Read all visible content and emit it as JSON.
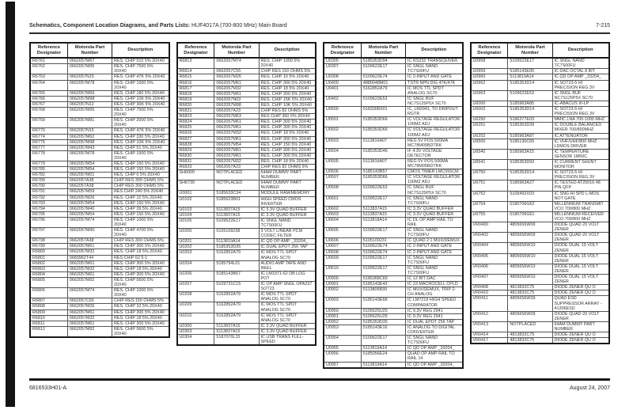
{
  "header": {
    "title_bold": "Schematics, Component Location Diagrams, and Parts Lists:",
    "title_normal": "HUF4017A (700-800 MHz) Main Board",
    "page_number": "7-215"
  },
  "table_headers": [
    "Reference Designator",
    "Motorola Part Number",
    "Description"
  ],
  "tables": [
    {
      "rows": [
        [
          "R6761",
          "0662057M67",
          "RES. CHIP 510 5% 20X40"
        ],
        [
          "R6762",
          "0662057M95",
          "RES. CHIP 7500 5% 20X40"
        ],
        [
          "R6763",
          "0662057N15",
          "RES. CHIP 47K 5% 20X40"
        ],
        [
          "R6764",
          "0662057M78",
          "RES. CHIP 1500 5% 20X40"
        ],
        [
          "R6765",
          "0662057M56",
          "RES. CHIP 180 5% 20X40"
        ],
        [
          "R6766",
          "0662057M98",
          "RES. CHIP 10K 5% 20X40"
        ],
        [
          "R6767",
          "0662057N12",
          "RES. CHIP 36K 5% 20X40"
        ],
        [
          "R6768",
          "0662057M95",
          "RES. CHIP 7500 5% 20X40"
        ],
        [
          "R6769",
          "0662057M81",
          "RES. CHIP 2000 5% 20X40"
        ],
        [
          "R6770",
          "0662057N15",
          "RES. CHIP 47K 5% 20X40"
        ],
        [
          "R6774",
          "0662057M62",
          "RES. CHIP 330 5% 20X40"
        ],
        [
          "R6775",
          "0662057M98",
          "RES. CHIP 10K 5% 20X40"
        ],
        [
          "R6777",
          "0662057M43",
          "RES. CHIP 51 5% 20X40"
        ],
        [
          "R6778",
          "0662057M78",
          "RES. CHIP 1500 5% 20X40"
        ],
        [
          "R6779",
          "0662057M54",
          "RES. CHIP 150 5% 20X40"
        ],
        [
          "R6780",
          "0662057M54",
          "RES. CHIP 150 5% 20X40"
        ],
        [
          "R6782",
          "0662057M01",
          "RES. CHIP 0 5% 20X40"
        ],
        [
          "R6789",
          "0662057A38",
          "CHIP RES 300 OHMS 5%"
        ],
        [
          "R6790",
          "0662057A38",
          "CHIP RES 300 OHMS 5%"
        ],
        [
          "R6791",
          "0662057M59",
          "RES CHIP 240 5% 20X40"
        ],
        [
          "R6792",
          "0662057M26",
          "RES. CHIP 10 5% 20X40"
        ],
        [
          "R6793",
          "0662057M54",
          "RES. CHIP 150 5% 20X40"
        ],
        [
          "R6794",
          "0662057M40",
          "RES. CHIP 39 5% 20X40"
        ],
        [
          "R6795",
          "0662057M54",
          "RES. CHIP 150 5% 20X40"
        ],
        [
          "R6796",
          "0662057M74",
          "RES. CHIP 1000 5% 20X40"
        ],
        [
          "R6797",
          "0662057M90",
          "RES. CHIP 4700 5% 20X40"
        ],
        [
          "R6798",
          "0662057A38",
          "CHIP RES 300 OHMS 5%"
        ],
        [
          "R6799",
          "0662057M61",
          "RES. CHIP 300 5% 20X40"
        ],
        [
          "R6800",
          "0662057M32",
          "RES. CHIP 18 5% 20X40"
        ],
        [
          "R6801",
          "0683962T44",
          "RES CHIP 62 5-1"
        ],
        [
          "R6802",
          "0662057M61",
          "RES. CHIP 300 5% 20X40"
        ],
        [
          "R6803",
          "0662057M32",
          "RES. CHIP 18 5% 20X40"
        ],
        [
          "R6804",
          "0662057M61",
          "RES. CHIP 300 5% 20X40"
        ],
        [
          "R6805",
          "0662057M92",
          "RES. CHIP 5600 5% 20X40"
        ],
        [
          "R6806",
          "0662057M74",
          "RES. CHIP 1000 5% 20X40"
        ],
        [
          "R6807",
          "0662057C65",
          "CHIP RES 150 OHMS 5%"
        ],
        [
          "R6808",
          "0662057M26",
          "RES. CHIP 10 5% 20X40"
        ],
        [
          "R6809",
          "0662057M61",
          "RES. CHIP 300 5% 20X40"
        ],
        [
          "R6810",
          "0662057M32",
          "RES. CHIP 18 5% 20X40"
        ],
        [
          "R6811",
          "0662057M61",
          "RES. CHIP 300 5% 20X40"
        ],
        [
          "R6812",
          "0662057M92",
          "RES. CHIP 5600 5% 20X40"
        ]
      ]
    },
    {
      "rows": [
        [
          "R6813",
          "0662057M74",
          "RES. CHIP 1000 5% 20X40"
        ],
        [
          "R6814",
          "0662057C55",
          "CHIP RES 150 OHMS 5%"
        ],
        [
          "R6815",
          "0662057M26",
          "RES. CHIP 10 5% 20X40"
        ],
        [
          "R6816",
          "0662057M61",
          "RES. CHIP 300 5% 20X40"
        ],
        [
          "R6817",
          "0662057M32",
          "RES. CHIP 18 5% 20X40"
        ],
        [
          "R6818",
          "0662057M61",
          "RES. CHIP 300 5% 20X40"
        ],
        [
          "R6819",
          "0662057N03",
          "RES. CHIP 15K 5% 20X40"
        ],
        [
          "R6820",
          "0662057M98",
          "RES. CHIP 10K 5% 20X40"
        ],
        [
          "R6821",
          "0662057A23",
          "CHIP RES 82 OHMS 5%"
        ],
        [
          "R6823",
          "0662057M63",
          "RES CHIP 360 5% 20X40"
        ],
        [
          "R6824",
          "0662057M61",
          "RES. CHIP 300 5% 20X40"
        ],
        [
          "R6825",
          "0662057M61",
          "RES. CHIP 300 5% 20X40"
        ],
        [
          "R6826",
          "0662057M32",
          "RES. CHIP 18 5% 20X40"
        ],
        [
          "R6827",
          "0662057M61",
          "RES. CHIP 300 5% 20X40"
        ],
        [
          "R6828",
          "0662057M54",
          "RES. CHIP 150 5% 20X40"
        ],
        [
          "R6829",
          "0662057M61",
          "RES. CHIP 300 5% 20X40"
        ],
        [
          "R6830",
          "0662057M61",
          "RES. CHIP 300 5% 20X40"
        ],
        [
          "R6831",
          "0662057M32",
          "RES. CHIP 18 5% 20X40"
        ],
        [
          "R6833",
          "0662057A23",
          "CHIP RES 82 OHMS 5%"
        ],
        [
          "SH6000",
          "NOTPLACED",
          "64AM DUMMY PART NUMBER"
        ],
        [
          "SH6730",
          "NOTPLACED",
          "64AM DUMMY PART NUMBER"
        ],
        [
          "U0001",
          "5185633C34",
          "MODULE RAM/MEMORY"
        ],
        [
          "U0102",
          "5185623B01",
          "HIGH SPEED CMOS INVERTER"
        ],
        [
          "U0103",
          "5113837A15",
          "IC 3.3V QUAD BUFFER"
        ],
        [
          "U0104",
          "5113837A15",
          "IC 3.3V QUAD BUFFER"
        ],
        [
          "U0105",
          "5109522E17",
          "IC SNGL NAND TC7S00FU"
        ],
        [
          "U0200",
          "5105109238",
          "3 VOLT LINEAR PCM CODEC FILTER"
        ],
        [
          "U0201",
          "5113819A14",
          "IC QD OP AMP _33204_"
        ],
        [
          "U0202",
          "5185353D35",
          "IC DUAL EPOT 256 TAP"
        ],
        [
          "U0203",
          "5162852A79",
          "IC MOS TTL SPDT ANALOG SC70"
        ],
        [
          "U0204",
          "5185794L01",
          "AUDIO AMP TAPE AND REEL"
        ],
        [
          "U0206",
          "5185143B67",
          "IC LM1971-62 DB LOG POT"
        ],
        [
          "U0207",
          "5109731C15",
          "IC OP AMP SNGL OPA237 SOT23"
        ],
        [
          "U0208",
          "5162852A79",
          "IC MOS TTL SPDT ANALOG SC70"
        ],
        [
          "U0209",
          "5162852A79",
          "IC MOS TTL SPDT ANALOG SC70"
        ],
        [
          "U0210",
          "5162852A79",
          "IC MOS TTL SPDT ANALOG SC70"
        ],
        [
          "U0300",
          "5113837A15",
          "IC 3.3V QUAD BUFFER"
        ],
        [
          "U0303",
          "5113837A15",
          "IC 3.3V QUAD BUFFER"
        ],
        [
          "U0304",
          "5187070L15",
          "IC USB TRANS FULL-SPEED"
        ]
      ]
    },
    {
      "rows": [
        [
          "U0305",
          "5185353D94",
          "IC RS232 TRANSCEIVER"
        ],
        [
          "U0307",
          "5109622E17",
          "IC SNGL NAND TC7S00FU"
        ],
        [
          "U0308",
          "5109622E74",
          "IC 2-INPUT AND GATE"
        ],
        [
          "U0400",
          "4880048M01",
          "TSTR NPN DIG 47K/47K"
        ],
        [
          "U0401",
          "5162852A79",
          "IC MOS TTL SPDT ANALOG SC70"
        ],
        [
          "U0402",
          "5109622E53",
          "IC SNGL BUF NC7S125P5X SC70"
        ],
        [
          "U0500",
          "5183308X01",
          "IC, LM2941, TO DRIPOUT RGTR"
        ],
        [
          "U0501",
          "5185353D66",
          "IC VOLTAGE REGULATOR 100MZ ADJ"
        ],
        [
          "U0502",
          "5185353D66",
          "IC VOLTAGE REGULATOR 100MZ ADJ"
        ],
        [
          "U0503",
          "5113816A07",
          "REG 5V POS 500MA MC78M05BDTRK"
        ],
        [
          "U0504",
          "5185353D46",
          "IF 4.3V VOLTAGE DETECTOR"
        ],
        [
          "U0505",
          "5113816A07",
          "REG 5V POS 500MA MC78M05BDTRK"
        ],
        [
          "U0506",
          "5185143B57",
          "CMOS TIMER LMC555CM"
        ],
        [
          "U0507",
          "5185353D66",
          "IC VOLTAGE REGULATOR 100MZ ADJ"
        ],
        [
          "U0508",
          "5109622E53",
          "IC SNGL BUF NC7S125P5X SC70"
        ],
        [
          "U0601",
          "5109522E17",
          "IC SNGL NAND TC7S00FU"
        ],
        [
          "U0602",
          "5113837A15",
          "IC 3.3V QUAD BUFFER"
        ],
        [
          "U0603",
          "5113837A15",
          "IC 3.3V QUAD BUFFER"
        ],
        [
          "U0604",
          "5113818A14",
          "IC DL OP AMP RAIL TO RAIL"
        ],
        [
          "U0605",
          "5109622E17",
          "IC SNGL NAND TC7S00FU"
        ],
        [
          "U0606",
          "5105109231",
          "IC QUAD 2:1 MUX/DEMUX"
        ],
        [
          "U0607",
          "5109622E74",
          "IC 2-INPUT AND GATE"
        ],
        [
          "U0608",
          "5109622E74",
          "IC 2-INPUT AND GATE"
        ],
        [
          "U0609",
          "5109622E17",
          "IC SNGL NAND TC7S00FU"
        ],
        [
          "U0610",
          "5109622E17",
          "IC SNGL NAND TC7S00FU"
        ],
        [
          "U0900",
          "5185368C83",
          "IC 12 BIT DAC"
        ],
        [
          "U0901",
          "5185143E43",
          "IC 23 MACROCELL CPLD"
        ],
        [
          "U0902",
          "5113805B39",
          "IC MUX/DEMUX, TRIP 2-CH ANALOG"
        ],
        [
          "U0903",
          "5185143E68",
          "IC LM7219 HIGH SPEED COMPARATOR"
        ],
        [
          "U0950",
          "5105625U25",
          "IC 9.3V REG 2941"
        ],
        [
          "U0951",
          "5105625U25",
          "IC 9.3V REG 2941"
        ],
        [
          "U0952",
          "5185353D35",
          "IC DUAL EPOT 256 TAP"
        ],
        [
          "U0953",
          "5185143E16",
          "IC ANALOG TO DIGITAL CONVERTER"
        ],
        [
          "U0954",
          "5109622E17",
          "IC SNGL NAND TC7S00FU"
        ],
        [
          "U0955",
          "5113819A14",
          "IC QD OP AMP _33204_"
        ],
        [
          "U0956",
          "5185056E24",
          "QUAD OP AMP RAIL TO RAIL 14"
        ],
        [
          "U0957",
          "5113819A14",
          "IC QD OP AMP _33204_"
        ]
      ]
    },
    {
      "rows": [
        [
          "U0958",
          "5109522E17",
          "IC SNGL NAND TC7S00FU"
        ],
        [
          "U0959",
          "5185143E05",
          "IC DAC OCTAL 8 BIT"
        ],
        [
          "U0960",
          "5113819A14",
          "IC QD OP AMP _33204_"
        ],
        [
          "U0962",
          "5185353D14",
          "IC SOT23-5 HI PRECISION REG 3V"
        ],
        [
          "U0963",
          "5109622E53",
          "IC SNGL BUF NC7S125P5X SC70"
        ],
        [
          "U6000",
          "5185963A85",
          "IC-ABACUS III-LP"
        ],
        [
          "U6002",
          "5185353D14",
          "IC SOT23-5 HI PRECISION REG 3V"
        ],
        [
          "U6250",
          "5186377E03",
          "MMIC LNA 700-1000 MHZ"
        ],
        [
          "U6251",
          "5185353D39",
          "IC DOUBLE BALANCED MIXER 700/800MHZ"
        ],
        [
          "U6252",
          "5185963A87",
          "IC ATTENUATOR"
        ],
        [
          "U6500",
          "5185130C65",
          "IC VHF/UHF/800 MHZ LDMOS DRIVER"
        ],
        [
          "U6540",
          "5185963A15",
          "IC TEMPERTURE SENSOR 1M50C"
        ],
        [
          "U6541",
          "5185353D92",
          "IC CURRENT SHUNT MONITOR"
        ],
        [
          "U6750",
          "5185353D14",
          "IC SOT23-5 HI PRECISION REG 3V"
        ],
        [
          "U6751",
          "5185963A27",
          "IC TESTED AT25016 48 PIN QFP"
        ],
        [
          "U6752",
          "5105492X03",
          "IC SNG HI SPD L-MOS NOT GATE"
        ],
        [
          "U6754",
          "0180706G62",
          "MILLENNIUM TRANSMIT VCO 700/800 MHZ"
        ],
        [
          "U6755",
          "0180706G61",
          "MILLENNIUM RECEIVER VCO 700/800 MHZ"
        ],
        [
          "VR0400",
          "4805656W09",
          "DIODE QUAD 20 VOLT ZENER"
        ],
        [
          "VR0402",
          "4805656W09",
          "DIODE QUAD 20 VOLT ZENER"
        ],
        [
          "VR0404",
          "4805656W10",
          "DIODE DUAL 15 VOLT ZENER"
        ],
        [
          "VR0405",
          "4805656W10",
          "DIODE DUAL 15 VOLT ZENER"
        ],
        [
          "VR0406",
          "4805656W10",
          "DIODE DUAL 15 VOLT ZENER"
        ],
        [
          "VR0407",
          "4805656W10",
          "DIODE DUAL 15 VOLT ZENER"
        ],
        [
          "VR0408",
          "4813832C75",
          "DIODE ZENER QU O"
        ],
        [
          "VR0410",
          "4813832C75",
          "DIODE ZENER QU O"
        ],
        [
          "VR0411",
          "4805656W39",
          "QUAD ESD SUPPRESSOR ARRAY - 41206ESD"
        ],
        [
          "VR0412",
          "4805656W09",
          "DIODE QUAD 20 VOLT ZENER"
        ],
        [
          "VR0413",
          "NOTPLACED",
          "64AM DUMMY PART NUMBER"
        ],
        [
          "VR0414",
          "4813832C75",
          "DIODE ZENER QU O"
        ],
        [
          "VR0417",
          "4813832C75",
          "DIODE ZENER QU O"
        ]
      ]
    }
  ],
  "footer": {
    "doc_number": "6816533H01-A",
    "date": "August 24, 2007"
  }
}
